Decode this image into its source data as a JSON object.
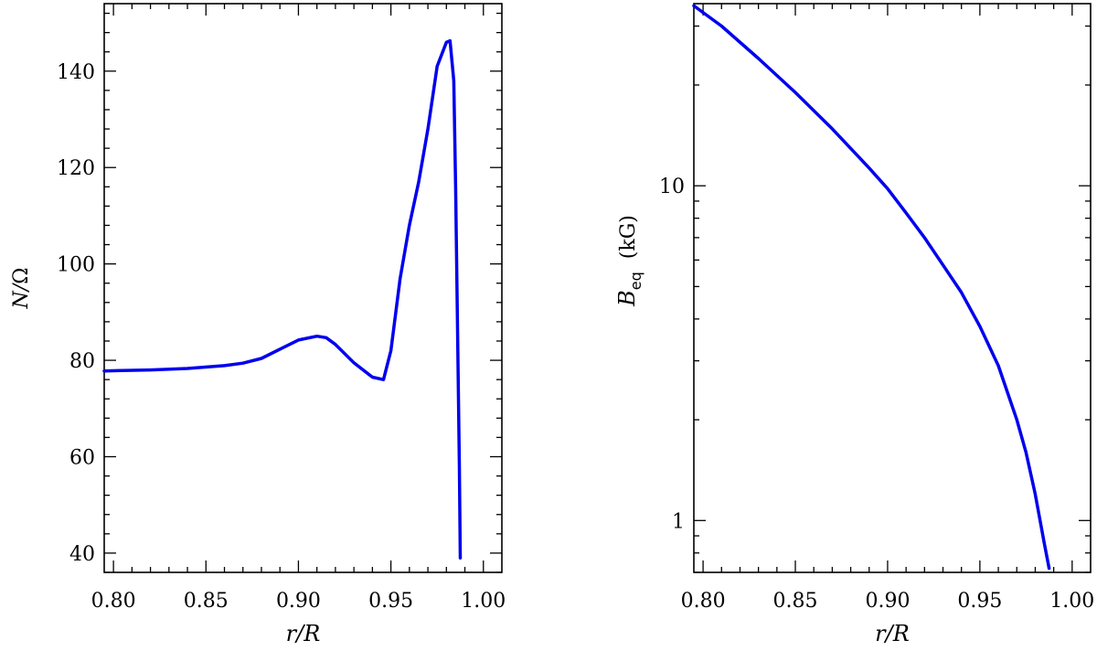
{
  "chart_data": [
    {
      "type": "line",
      "xlabel": "r/R",
      "ylabel": "N/Ω",
      "ylabel_parts": {
        "var": "N",
        "sep": "/",
        "rest": "Ω"
      },
      "xlim": [
        0.795,
        1.01
      ],
      "ylim": [
        36,
        154
      ],
      "yscale": "linear",
      "xticks": [
        0.8,
        0.85,
        0.9,
        0.95,
        1.0
      ],
      "xtick_labels": [
        "0.80",
        "0.85",
        "0.90",
        "0.95",
        "1.00"
      ],
      "yticks": [
        40,
        60,
        80,
        100,
        120,
        140
      ],
      "ytick_labels": [
        "40",
        "60",
        "80",
        "100",
        "120",
        "140"
      ],
      "grid": false,
      "color": "#0000ee",
      "series": [
        {
          "x": [
            0.795,
            0.82,
            0.84,
            0.86,
            0.87,
            0.88,
            0.89,
            0.9,
            0.91,
            0.915,
            0.92,
            0.93,
            0.94,
            0.946,
            0.95,
            0.955,
            0.96,
            0.965,
            0.97,
            0.975,
            0.98,
            0.982,
            0.984,
            0.985,
            0.986,
            0.987,
            0.9875
          ],
          "y": [
            77.8,
            78.0,
            78.3,
            78.9,
            79.4,
            80.4,
            82.3,
            84.2,
            85.0,
            84.7,
            83.3,
            79.5,
            76.5,
            76.0,
            82.0,
            97.0,
            108.0,
            117.0,
            128.0,
            141.0,
            146.0,
            146.3,
            138.0,
            116.0,
            88.0,
            58.0,
            39.0
          ]
        }
      ]
    },
    {
      "type": "line",
      "xlabel": "r/R",
      "ylabel": "B (kG)",
      "ylabel_parts": {
        "var": "B",
        "sub": "eq",
        "unit": "(kG)"
      },
      "xlim": [
        0.795,
        1.01
      ],
      "ylim": [
        0.7,
        35
      ],
      "yscale": "log",
      "xticks": [
        0.8,
        0.85,
        0.9,
        0.95,
        1.0
      ],
      "xtick_labels": [
        "0.80",
        "0.85",
        "0.90",
        "0.95",
        "1.00"
      ],
      "yticks": [
        1,
        10
      ],
      "ytick_labels": [
        "1",
        "10"
      ],
      "minor_yticks": [
        0.7,
        0.8,
        0.9,
        2,
        3,
        4,
        5,
        6,
        7,
        8,
        9,
        20,
        30
      ],
      "grid": false,
      "color": "#0000ee",
      "series": [
        {
          "x": [
            0.795,
            0.81,
            0.83,
            0.85,
            0.87,
            0.89,
            0.9,
            0.91,
            0.92,
            0.93,
            0.94,
            0.95,
            0.96,
            0.97,
            0.975,
            0.98,
            0.985,
            0.9875
          ],
          "y": [
            34.5,
            30.0,
            24.0,
            19.0,
            14.8,
            11.3,
            9.8,
            8.3,
            7.0,
            5.8,
            4.8,
            3.8,
            2.9,
            2.0,
            1.6,
            1.2,
            0.85,
            0.72
          ]
        }
      ]
    }
  ]
}
